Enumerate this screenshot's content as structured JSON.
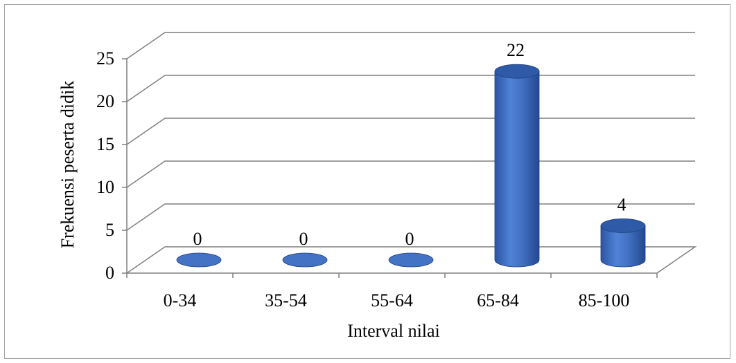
{
  "chart_data": {
    "type": "bar",
    "categories": [
      "0-34",
      "35-54",
      "55-64",
      "65-84",
      "85-100"
    ],
    "values": [
      0,
      0,
      0,
      22,
      4
    ],
    "data_labels": [
      "0",
      "0",
      "0",
      "22",
      "4"
    ],
    "xlabel": "Interval nilai",
    "ylabel": "Frekuensi peserta didik",
    "ylim": [
      0,
      25
    ],
    "yticks": [
      0,
      5,
      10,
      15,
      20,
      25
    ],
    "grid": true,
    "style": "3d-cylinder",
    "bar_color": "#4472C4",
    "bar_top_color": "#2E5AA8",
    "gridline_color": "#7f7f7f"
  }
}
